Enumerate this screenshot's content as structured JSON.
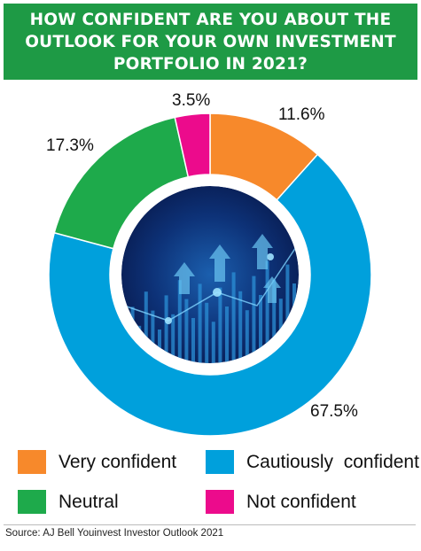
{
  "title_lines": [
    "HOW CONFIDENT ARE YOU ABOUT THE",
    "OUTLOOK FOR YOUR OWN INVESTMENT",
    "PORTFOLIO IN 2021?"
  ],
  "source": "Source: AJ Bell Youinvest Investor Outlook 2021",
  "colors": {
    "banner": "#1e9a45",
    "very_confident": "#f7892b",
    "cautiously_confident": "#00a0dc",
    "neutral": "#1eaa4b",
    "not_confident": "#ec0b8c"
  },
  "chart_data": {
    "type": "pie",
    "style": "donut",
    "title": "HOW CONFIDENT ARE YOU ABOUT THE OUTLOOK FOR YOUR OWN INVESTMENT PORTFOLIO IN 2021?",
    "slices": [
      {
        "name": "Very confident",
        "value": 11.6,
        "label": "11.6%",
        "color": "#f7892b"
      },
      {
        "name": "Cautiously  confident",
        "value": 67.5,
        "label": "67.5%",
        "color": "#00a0dc"
      },
      {
        "name": "Neutral",
        "value": 17.3,
        "label": "17.3%",
        "color": "#1eaa4b"
      },
      {
        "name": "Not confident",
        "value": 3.5,
        "label": "3.5%",
        "color": "#ec0b8c"
      }
    ],
    "legend_position": "bottom",
    "legend": [
      {
        "label": "Very confident",
        "color": "#f7892b"
      },
      {
        "label": "Cautiously  confident",
        "color": "#00a0dc"
      },
      {
        "label": "Neutral",
        "color": "#1eaa4b"
      },
      {
        "label": "Not confident",
        "color": "#ec0b8c"
      }
    ]
  }
}
